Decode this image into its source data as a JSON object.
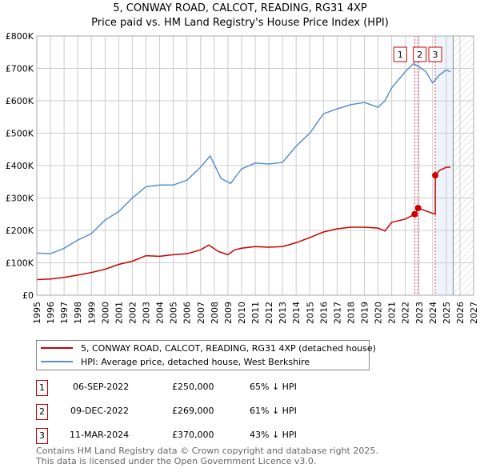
{
  "chart_data": {
    "type": "line",
    "title": "5, CONWAY ROAD, CALCOT, READING, RG31 4XP",
    "subtitle": "Price paid vs. HM Land Registry's House Price Index (HPI)",
    "xlim": [
      1995,
      2027
    ],
    "ylim": [
      0,
      800000
    ],
    "x_ticks": [
      "1995",
      "1996",
      "1997",
      "1998",
      "1999",
      "2000",
      "2001",
      "2002",
      "2003",
      "2004",
      "2005",
      "2006",
      "2007",
      "2008",
      "2009",
      "2010",
      "2011",
      "2012",
      "2013",
      "2014",
      "2015",
      "2016",
      "2017",
      "2018",
      "2019",
      "2020",
      "2021",
      "2022",
      "2023",
      "2024",
      "2025",
      "2026",
      "2027"
    ],
    "y_ticks": [
      {
        "v": 0,
        "l": "£0"
      },
      {
        "v": 100000,
        "l": "£100K"
      },
      {
        "v": 200000,
        "l": "£200K"
      },
      {
        "v": 300000,
        "l": "£300K"
      },
      {
        "v": 400000,
        "l": "£400K"
      },
      {
        "v": 500000,
        "l": "£500K"
      },
      {
        "v": 600000,
        "l": "£600K"
      },
      {
        "v": 700000,
        "l": "£700K"
      },
      {
        "v": 800000,
        "l": "£800K"
      }
    ],
    "grid": true,
    "series": [
      {
        "name": "5, CONWAY ROAD, CALCOT, READING, RG31 4XP (detached house)",
        "color": "#cc0000",
        "x": [
          1995,
          1996,
          1997,
          1998,
          1999,
          2000,
          2001,
          2002,
          2003,
          2004,
          2005,
          2006,
          2007,
          2007.6,
          2008.3,
          2009,
          2009.5,
          2010,
          2011,
          2012,
          2013,
          2014,
          2015,
          2016,
          2017,
          2018,
          2019,
          2020,
          2020.5,
          2021,
          2022,
          2022.68,
          2022.94,
          2023.5,
          2024.19,
          2024.19,
          2024.5,
          2025,
          2025.3
        ],
        "y": [
          48000,
          50000,
          55000,
          62000,
          70000,
          80000,
          95000,
          105000,
          122000,
          120000,
          125000,
          128000,
          140000,
          155000,
          135000,
          125000,
          140000,
          145000,
          150000,
          148000,
          150000,
          162000,
          178000,
          195000,
          205000,
          210000,
          210000,
          207000,
          198000,
          225000,
          235000,
          250000,
          269000,
          260000,
          250000,
          370000,
          385000,
          395000,
          395000
        ]
      },
      {
        "name": "HPI: Average price, detached house, West Berkshire",
        "color": "#5b8fd0",
        "x": [
          1995,
          1996,
          1997,
          1998,
          1999,
          2000,
          2001,
          2002,
          2003,
          2004,
          2005,
          2006,
          2007,
          2007.7,
          2008.5,
          2009.2,
          2010,
          2011,
          2012,
          2013,
          2014,
          2015,
          2016,
          2017,
          2018,
          2019,
          2020,
          2020.5,
          2021,
          2022,
          2022.6,
          2023,
          2023.5,
          2024,
          2024.5,
          2025,
          2025.3
        ],
        "y": [
          130000,
          128000,
          145000,
          170000,
          190000,
          232000,
          258000,
          300000,
          335000,
          340000,
          340000,
          355000,
          395000,
          430000,
          360000,
          345000,
          390000,
          408000,
          405000,
          410000,
          460000,
          500000,
          560000,
          575000,
          588000,
          595000,
          580000,
          600000,
          640000,
          690000,
          715000,
          705000,
          690000,
          655000,
          680000,
          695000,
          690000
        ]
      }
    ],
    "sales": [
      {
        "n": "1",
        "x": 2022.68,
        "date": "06-SEP-2022",
        "price": "£250,000",
        "value": 250000,
        "hpi": "65% ↓ HPI"
      },
      {
        "n": "2",
        "x": 2022.94,
        "date": "09-DEC-2022",
        "price": "£269,000",
        "value": 269000,
        "hpi": "61% ↓ HPI"
      },
      {
        "n": "3",
        "x": 2024.19,
        "date": "11-MAR-2024",
        "price": "£370,000",
        "value": 370000,
        "hpi": "43% ↓ HPI"
      }
    ],
    "forecast_start": 2025.5
  },
  "footer": [
    "Contains HM Land Registry data © Crown copyright and database right 2025.",
    "This data is licensed under the Open Government Licence v3.0."
  ]
}
